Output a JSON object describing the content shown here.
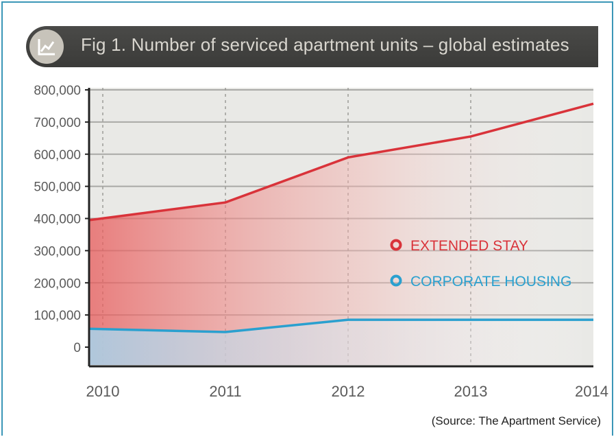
{
  "figure": {
    "title": "Fig 1. Number of serviced apartment units – global estimates",
    "icon": "line-chart-icon",
    "source": "(Source: The Apartment Service)"
  },
  "colors": {
    "extended_stay": "#d9333a",
    "corporate_housing": "#2aa0cf",
    "banner_bg": "#404040",
    "frame_border": "#3a96b7"
  },
  "chart_data": {
    "type": "area",
    "title": "Fig 1. Number of serviced apartment units – global estimates",
    "x": [
      "2010",
      "2011",
      "2012",
      "2013",
      "2014"
    ],
    "y_ticks": [
      "0",
      "100,000",
      "200,000",
      "300,000",
      "400,000",
      "500,000",
      "600,000",
      "700,000",
      "800,000"
    ],
    "ylim": [
      0,
      800000
    ],
    "grid": true,
    "legend_position": "center-right",
    "series": [
      {
        "name": "EXTENDED STAY",
        "values": [
          395000,
          450000,
          590000,
          655000,
          757000
        ]
      },
      {
        "name": "CORPORATE HOUSING",
        "values": [
          57000,
          47000,
          85000,
          85000,
          85000
        ]
      }
    ]
  }
}
